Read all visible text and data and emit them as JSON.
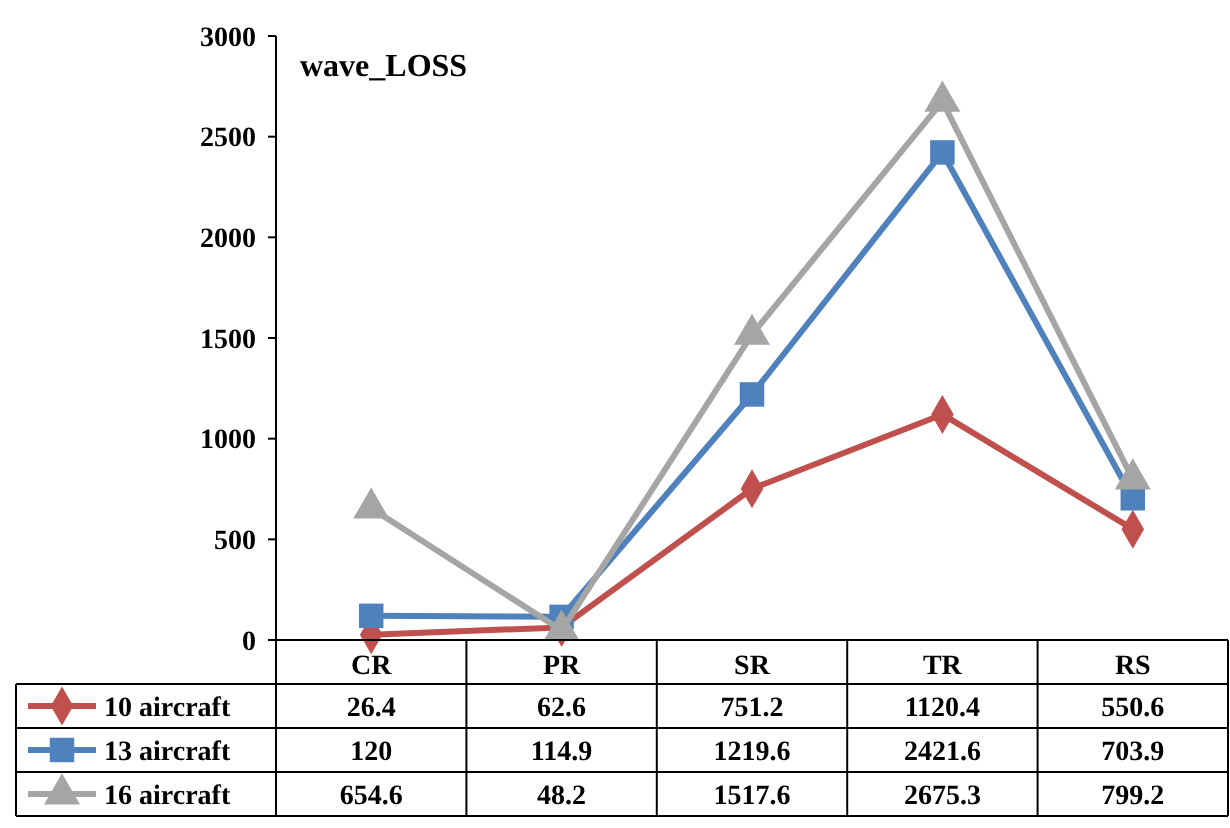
{
  "chart_data": {
    "type": "line",
    "title": "wave_LOSS",
    "categories": [
      "CR",
      "PR",
      "SR",
      "TR",
      "RS"
    ],
    "series": [
      {
        "name": "10 aircraft",
        "color": "#c0504d",
        "marker": "diamond",
        "values": [
          26.4,
          62.6,
          751.2,
          1120.4,
          550.6
        ]
      },
      {
        "name": "13 aircraft",
        "color": "#4f81bd",
        "marker": "square",
        "values": [
          120,
          114.9,
          1219.6,
          2421.6,
          703.9
        ]
      },
      {
        "name": "16 aircraft",
        "color": "#a5a5a5",
        "marker": "triangle",
        "values": [
          654.6,
          48.2,
          1517.6,
          2675.3,
          799.2
        ]
      }
    ],
    "ylim": [
      0,
      3000
    ],
    "yticks": [
      0,
      500,
      1000,
      1500,
      2000,
      2500,
      3000
    ],
    "grid": false,
    "legend": "bottom",
    "data_labels": true
  }
}
